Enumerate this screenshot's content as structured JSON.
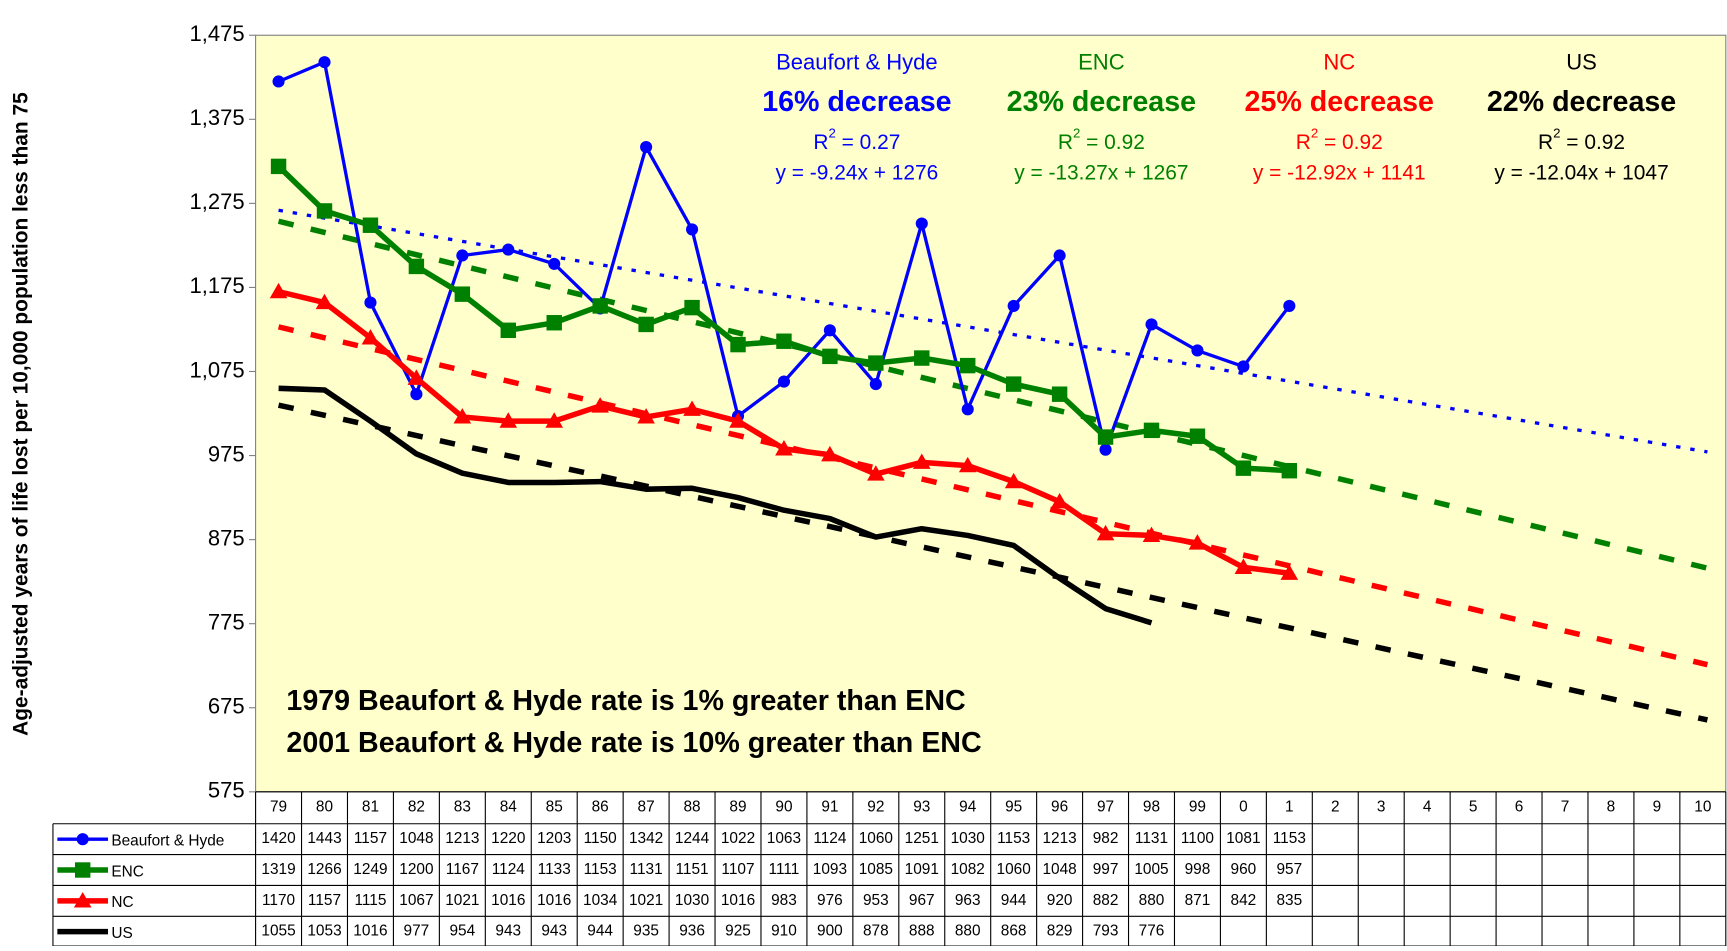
{
  "chart_data": {
    "type": "line",
    "y_axis_label": "Age-adjusted years of life lost per 10,000 population less than 75",
    "categories": [
      "79",
      "80",
      "81",
      "82",
      "83",
      "84",
      "85",
      "86",
      "87",
      "88",
      "89",
      "90",
      "91",
      "92",
      "93",
      "94",
      "95",
      "96",
      "97",
      "98",
      "99",
      "0",
      "1",
      "2",
      "3",
      "4",
      "5",
      "6",
      "7",
      "8",
      "9",
      "10"
    ],
    "ylim": [
      575,
      1475
    ],
    "yticks": [
      {
        "value": 575,
        "label": "575"
      },
      {
        "value": 675,
        "label": "675"
      },
      {
        "value": 775,
        "label": "775"
      },
      {
        "value": 875,
        "label": "875"
      },
      {
        "value": 975,
        "label": "975"
      },
      {
        "value": 1075,
        "label": "1,075"
      },
      {
        "value": 1175,
        "label": "1,175"
      },
      {
        "value": 1275,
        "label": "1,275"
      },
      {
        "value": 1375,
        "label": "1,375"
      },
      {
        "value": 1475,
        "label": "1,475"
      }
    ],
    "series": [
      {
        "name": "Beaufort & Hyde",
        "color": "#0000ff",
        "marker": "circle",
        "values": [
          1420,
          1443,
          1157,
          1048,
          1213,
          1220,
          1203,
          1150,
          1342,
          1244,
          1022,
          1063,
          1124,
          1060,
          1251,
          1030,
          1153,
          1213,
          982,
          1131,
          1100,
          1081,
          1153,
          null,
          null,
          null,
          null,
          null,
          null,
          null,
          null,
          null
        ],
        "change_label": "16% decrease",
        "r2_label": "R2 = 0.27",
        "trend": {
          "slope": -9.24,
          "intercept": 1276,
          "label": "y = -9.24x + 1276"
        }
      },
      {
        "name": "ENC",
        "color": "#008000",
        "marker": "square",
        "values": [
          1319,
          1266,
          1249,
          1200,
          1167,
          1124,
          1133,
          1153,
          1131,
          1151,
          1107,
          1111,
          1093,
          1085,
          1091,
          1082,
          1060,
          1048,
          997,
          1005,
          998,
          960,
          957,
          null,
          null,
          null,
          null,
          null,
          null,
          null,
          null,
          null
        ],
        "change_label": "23% decrease",
        "r2_label": "R2 = 0.92",
        "trend": {
          "slope": -13.27,
          "intercept": 1267,
          "label": "y = -13.27x + 1267"
        }
      },
      {
        "name": "NC",
        "color": "#ff0000",
        "marker": "triangle",
        "values": [
          1170,
          1157,
          1115,
          1067,
          1021,
          1016,
          1016,
          1034,
          1021,
          1030,
          1016,
          983,
          976,
          953,
          967,
          963,
          944,
          920,
          882,
          880,
          871,
          842,
          835,
          null,
          null,
          null,
          null,
          null,
          null,
          null,
          null,
          null
        ],
        "change_label": "25% decrease",
        "r2_label": "R2 = 0.92",
        "trend": {
          "slope": -12.92,
          "intercept": 1141,
          "label": "y = -12.92x + 1141"
        }
      },
      {
        "name": "US",
        "color": "#000000",
        "marker": "none",
        "values": [
          1055,
          1053,
          1016,
          977,
          954,
          943,
          943,
          944,
          935,
          936,
          925,
          910,
          900,
          878,
          888,
          880,
          868,
          829,
          793,
          776,
          null,
          null,
          null,
          null,
          null,
          null,
          null,
          null,
          null,
          null,
          null,
          null
        ],
        "change_label": "22% decrease",
        "r2_label": "R2 = 0.92",
        "trend": {
          "slope": -12.04,
          "intercept": 1047,
          "label": "y = -12.04x + 1047"
        }
      }
    ],
    "annotations": [
      "1979 Beaufort & Hyde rate is 1% greater than ENC",
      "2001 Beaufort & Hyde rate is 10% greater than ENC"
    ]
  }
}
